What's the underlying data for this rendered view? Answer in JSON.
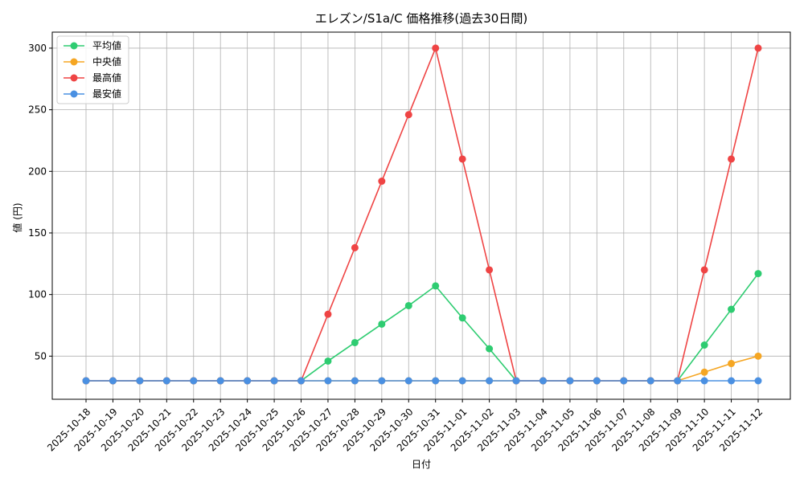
{
  "chart_data": {
    "type": "line",
    "title": "エレズン/S1a/C 価格推移(過去30日間)",
    "xlabel": "日付",
    "ylabel": "値 (円)",
    "ylim": [
      15,
      313
    ],
    "yticks": [
      50,
      100,
      150,
      200,
      250,
      300
    ],
    "grid": true,
    "legend_position": "top-left",
    "categories": [
      "2025-10-18",
      "2025-10-19",
      "2025-10-20",
      "2025-10-21",
      "2025-10-22",
      "2025-10-23",
      "2025-10-24",
      "2025-10-25",
      "2025-10-26",
      "2025-10-27",
      "2025-10-28",
      "2025-10-29",
      "2025-10-30",
      "2025-10-31",
      "2025-11-01",
      "2025-11-02",
      "2025-11-03",
      "2025-11-04",
      "2025-11-05",
      "2025-11-06",
      "2025-11-07",
      "2025-11-08",
      "2025-11-09",
      "2025-11-10",
      "2025-11-11",
      "2025-11-12"
    ],
    "series": [
      {
        "name": "平均値",
        "color": "#2ecc71",
        "values": [
          30,
          30,
          30,
          30,
          30,
          30,
          30,
          30,
          30,
          46,
          61,
          76,
          91,
          107,
          81,
          56,
          30,
          30,
          30,
          30,
          30,
          30,
          30,
          59,
          88,
          117
        ]
      },
      {
        "name": "中央値",
        "color": "#f5a623",
        "values": [
          30,
          30,
          30,
          30,
          30,
          30,
          30,
          30,
          30,
          30,
          30,
          30,
          30,
          30,
          30,
          30,
          30,
          30,
          30,
          30,
          30,
          30,
          30,
          37,
          44,
          50
        ]
      },
      {
        "name": "最高値",
        "color": "#ef4444",
        "values": [
          30,
          30,
          30,
          30,
          30,
          30,
          30,
          30,
          30,
          84,
          138,
          192,
          246,
          300,
          210,
          120,
          30,
          30,
          30,
          30,
          30,
          30,
          30,
          120,
          210,
          300
        ]
      },
      {
        "name": "最安値",
        "color": "#4a90e2",
        "values": [
          30,
          30,
          30,
          30,
          30,
          30,
          30,
          30,
          30,
          30,
          30,
          30,
          30,
          30,
          30,
          30,
          30,
          30,
          30,
          30,
          30,
          30,
          30,
          30,
          30,
          30
        ]
      }
    ]
  }
}
